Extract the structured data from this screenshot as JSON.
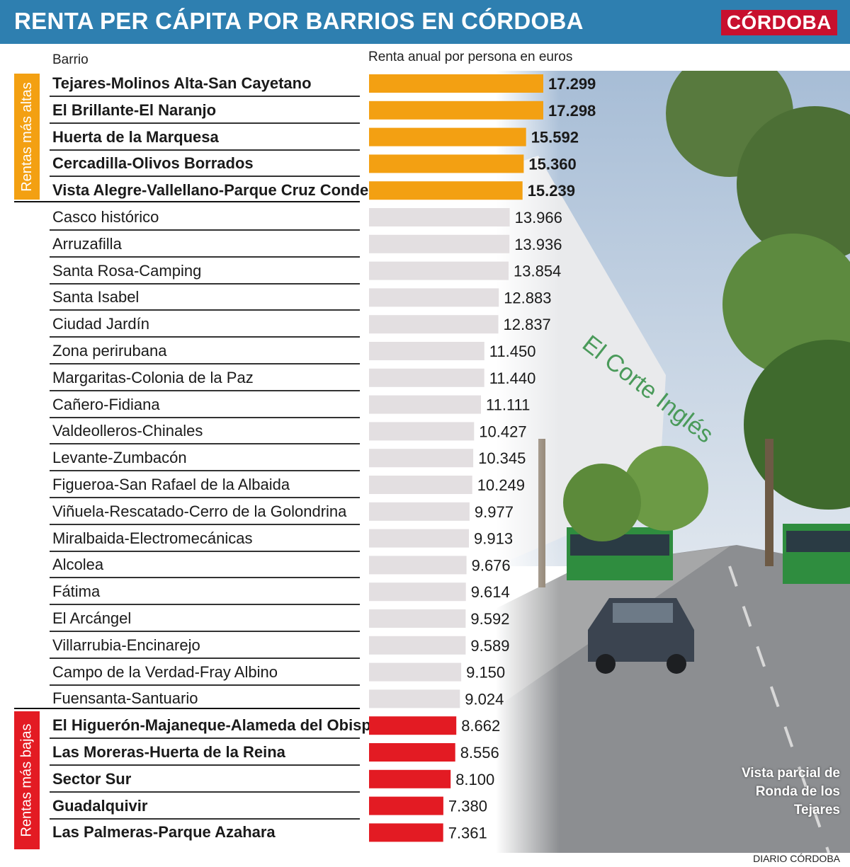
{
  "header": {
    "title": "RENTA PER CÁPITA POR BARRIOS EN CÓRDOBA",
    "brand": "CÓRDOBA"
  },
  "columns": {
    "barrio": "Barrio",
    "renta": "Renta anual por persona en euros"
  },
  "bands": {
    "high": "Rentas más altas",
    "low": "Rentas más bajas"
  },
  "caption": [
    "Vista parcial de",
    "Ronda de los",
    "Tejares"
  ],
  "credit": "DIARIO CÓRDOBA",
  "colors": {
    "high": "#f3a012",
    "mid": "#e3dfe1",
    "low": "#e31b23",
    "header": "#2e7fb0"
  },
  "chart_data": {
    "type": "bar",
    "title": "RENTA PER CÁPITA POR BARRIOS EN CÓRDOBA",
    "xlabel": "Renta anual por persona en euros",
    "ylabel": "Barrio",
    "xlim": [
      0,
      17299
    ],
    "orientation": "horizontal",
    "categories": [
      "Tejares-Molinos Alta-San Cayetano",
      "El Brillante-El Naranjo",
      "Huerta de la Marquesa",
      "Cercadilla-Olivos Borrados",
      "Vista Alegre-Vallellano-Parque Cruz Conde",
      "Casco histórico",
      "Arruzafilla",
      "Santa Rosa-Camping",
      "Santa Isabel",
      "Ciudad Jardín",
      "Zona perirubana",
      "Margaritas-Colonia de la Paz",
      "Cañero-Fidiana",
      "Valdeolleros-Chinales",
      "Levante-Zumbacón",
      "Figueroa-San Rafael de la Albaida",
      "Viñuela-Rescatado-Cerro de la Golondrina",
      "Miralbaida-Electromecánicas",
      "Alcolea",
      "Fátima",
      "El Arcángel",
      "Villarrubia-Encinarejo",
      "Campo de la Verdad-Fray Albino",
      "Fuensanta-Santuario",
      "El Higuerón-Majaneque-Alameda del Obispo",
      "Las Moreras-Huerta de la Reina",
      "Sector Sur",
      "Guadalquivir",
      "Las Palmeras-Parque Azahara"
    ],
    "values": [
      17299,
      17298,
      15592,
      15360,
      15239,
      13966,
      13936,
      13854,
      12883,
      12837,
      11450,
      11440,
      11111,
      10427,
      10345,
      10249,
      9977,
      9913,
      9676,
      9614,
      9592,
      9589,
      9150,
      9024,
      8662,
      8556,
      8100,
      7380,
      7361
    ],
    "value_labels": [
      "17.299",
      "17.298",
      "15.592",
      "15.360",
      "15.239",
      "13.966",
      "13.936",
      "13.854",
      "12.883",
      "12.837",
      "11.450",
      "11.440",
      "11.111",
      "10.427",
      "10.345",
      "10.249",
      "9.977",
      "9.913",
      "9.676",
      "9.614",
      "9.592",
      "9.589",
      "9.150",
      "9.024",
      "8.662",
      "8.556",
      "8.100",
      "7.380",
      "7.361"
    ],
    "groups": [
      "high",
      "high",
      "high",
      "high",
      "high",
      "mid",
      "mid",
      "mid",
      "mid",
      "mid",
      "mid",
      "mid",
      "mid",
      "mid",
      "mid",
      "mid",
      "mid",
      "mid",
      "mid",
      "mid",
      "mid",
      "mid",
      "mid",
      "mid",
      "low",
      "low",
      "low",
      "low",
      "low"
    ]
  }
}
